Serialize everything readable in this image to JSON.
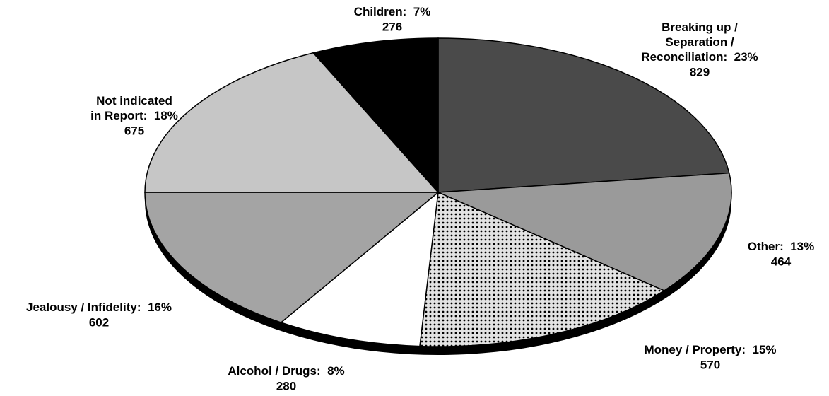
{
  "chart_data": {
    "type": "pie",
    "categories": [
      [
        "Breaking up /",
        "Separation /",
        "Reconciliation:"
      ],
      [
        "Other:"
      ],
      [
        "Money / Property:"
      ],
      [
        "Alcohol / Drugs:"
      ],
      [
        "Jealousy / Infidelity:"
      ],
      [
        "Not indicated",
        "in Report:"
      ],
      [
        "Children:"
      ]
    ],
    "values": [
      23,
      13,
      15,
      8,
      16,
      18,
      7
    ],
    "value_labels": [
      "23%",
      "13%",
      "15%",
      "8%",
      "16%",
      "18%",
      "7%"
    ],
    "counts": [
      829,
      464,
      570,
      280,
      602,
      675,
      276
    ],
    "colors": [
      "#4a4a4a",
      "#9a9a9a",
      "#e2e2e2",
      "#ffffff",
      "#a4a4a4",
      "#c6c6c6",
      "#000000"
    ]
  }
}
